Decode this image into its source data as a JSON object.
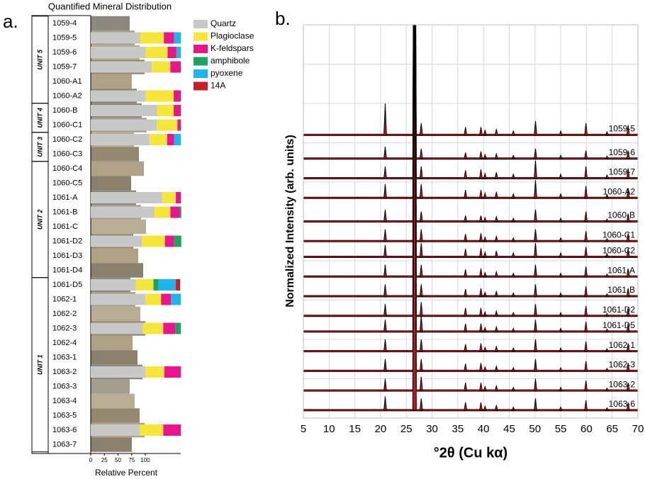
{
  "chart_data": [
    {
      "type": "stratigraphic-bar",
      "panel_label": "a.",
      "title": "Quantified Mineral Distribution",
      "x_label": "Relative Percent",
      "categories": [
        "1059-4",
        "1059-5",
        "1059-6",
        "1059-7",
        "1060-A1",
        "1060-A2",
        "1060-B",
        "1060-C1",
        "1060-C2",
        "1060-C3",
        "1060-C4",
        "1060-C5",
        "1061-A",
        "1061-B",
        "1061-C",
        "1061-D2",
        "1061-D3",
        "1061-D4",
        "1061-D5",
        "1062-1",
        "1062-2",
        "1062-3",
        "1062-4",
        "1063-1",
        "1063-2",
        "1063-3",
        "1063-4",
        "1063-5",
        "1063-6",
        "1063-7"
      ],
      "units": [
        {
          "label": "UNIT 5",
          "first_row": 0,
          "last_row": 5
        },
        {
          "label": "UNIT 4",
          "first_row": 6,
          "last_row": 7
        },
        {
          "label": "UNIT 3",
          "first_row": 8,
          "last_row": 9
        },
        {
          "label": "UNIT 2",
          "first_row": 10,
          "last_row": 17
        },
        {
          "label": "UNIT 1",
          "first_row": 18,
          "last_row": 29
        }
      ],
      "series": [
        {
          "name": "Quartz",
          "color": "#c8c8c8",
          "values": [
            null,
            91,
            101,
            112,
            null,
            101,
            122,
            121,
            108,
            null,
            null,
            null,
            131,
            117,
            null,
            94,
            null,
            null,
            83,
            100,
            null,
            95,
            null,
            null,
            100,
            null,
            null,
            null,
            90,
            null
          ]
        },
        {
          "name": "Plagioclase",
          "color": "#f5e63c",
          "values": [
            null,
            43,
            40,
            34,
            null,
            51,
            30,
            38,
            32,
            null,
            null,
            null,
            25,
            29,
            null,
            42,
            null,
            null,
            32,
            29,
            null,
            38,
            null,
            null,
            35,
            null,
            null,
            null,
            43,
            null
          ]
        },
        {
          "name": "K-feldspars",
          "color": "#e8168a",
          "values": [
            null,
            19,
            16,
            19,
            null,
            13,
            13,
            6,
            13,
            null,
            null,
            null,
            9,
            17,
            null,
            17,
            null,
            null,
            null,
            18,
            null,
            22,
            null,
            null,
            30,
            null,
            null,
            null,
            32,
            null
          ]
        },
        {
          "name": "amphibole",
          "color": "#1fa35c",
          "values": [
            null,
            null,
            null,
            null,
            null,
            null,
            null,
            null,
            null,
            null,
            null,
            null,
            null,
            3,
            null,
            13,
            null,
            null,
            9,
            null,
            null,
            10,
            null,
            null,
            null,
            null,
            null,
            null,
            null,
            null
          ]
        },
        {
          "name": "pyoxene",
          "color": "#1fb4ea",
          "values": [
            null,
            12,
            8,
            null,
            null,
            null,
            null,
            null,
            12,
            null,
            null,
            null,
            null,
            null,
            null,
            null,
            null,
            null,
            32,
            18,
            null,
            null,
            null,
            null,
            null,
            null,
            null,
            null,
            null,
            null
          ]
        },
        {
          "name": "14A",
          "color": "#c4202c",
          "values": [
            null,
            null,
            null,
            null,
            null,
            null,
            null,
            null,
            null,
            null,
            null,
            null,
            null,
            null,
            null,
            null,
            null,
            null,
            8,
            null,
            null,
            null,
            null,
            null,
            null,
            null,
            null,
            null,
            null,
            null
          ]
        }
      ],
      "xlim": [
        0,
        165
      ],
      "xticks": [
        0,
        25,
        50,
        75,
        100
      ]
    },
    {
      "type": "xrd",
      "panel_label": "b.",
      "x_label": "°2θ (Cu kα)",
      "y_label": "Normalized Intensity (arb. units)",
      "xlim": [
        5,
        70
      ],
      "xticks": [
        5,
        10,
        15,
        20,
        25,
        30,
        35,
        40,
        45,
        50,
        55,
        60,
        65,
        70
      ],
      "ylim": [
        0,
        10
      ],
      "ygrid": [
        0,
        1,
        2,
        3,
        4,
        5,
        6,
        7,
        8,
        9,
        10
      ],
      "grid": true,
      "line_color": "#000000",
      "fit_color": "#c8161e",
      "peak_positions": [
        20.9,
        26.6,
        27.9,
        36.5,
        39.5,
        40.3,
        42.5,
        45.8,
        50.1,
        55.0,
        59.9,
        64.0,
        68.1
      ],
      "series": [
        {
          "name": "1059-5",
          "baseline": 7.2,
          "values": [
            0.8,
            10,
            0.3,
            0.2,
            0.2,
            0.12,
            0.15,
            0.1,
            0.35,
            0.1,
            0.3,
            0.08,
            0.25
          ]
        },
        {
          "name": "1059-6",
          "baseline": 6.6,
          "values": [
            0.3,
            10,
            0.25,
            0.15,
            0.18,
            0.1,
            0.12,
            0.08,
            0.25,
            0.08,
            0.2,
            0.06,
            0.2
          ]
        },
        {
          "name": "1059-7",
          "baseline": 6.1,
          "values": [
            0.3,
            10,
            0.3,
            0.2,
            0.22,
            0.12,
            0.15,
            0.1,
            0.45,
            0.1,
            0.3,
            0.08,
            0.25
          ]
        },
        {
          "name": "1060-A2",
          "baseline": 5.6,
          "values": [
            0.35,
            10,
            0.35,
            0.2,
            0.2,
            0.12,
            0.15,
            0.1,
            0.45,
            0.1,
            0.3,
            0.08,
            0.25
          ]
        },
        {
          "name": "1060-B",
          "baseline": 5.0,
          "values": [
            0.3,
            10,
            0.25,
            0.15,
            0.15,
            0.1,
            0.12,
            0.08,
            0.3,
            0.08,
            0.25,
            0.06,
            0.2
          ]
        },
        {
          "name": "1060-C1",
          "baseline": 4.5,
          "values": [
            0.3,
            10,
            0.3,
            0.18,
            0.2,
            0.1,
            0.12,
            0.08,
            0.3,
            0.08,
            0.25,
            0.06,
            0.2
          ]
        },
        {
          "name": "1060-C2",
          "baseline": 4.1,
          "values": [
            0.3,
            10,
            0.35,
            0.2,
            0.22,
            0.12,
            0.15,
            0.1,
            0.35,
            0.1,
            0.25,
            0.08,
            0.22
          ]
        },
        {
          "name": "1061-A",
          "baseline": 3.6,
          "values": [
            0.3,
            10,
            0.3,
            0.18,
            0.2,
            0.1,
            0.12,
            0.08,
            0.3,
            0.08,
            0.25,
            0.06,
            0.2
          ]
        },
        {
          "name": "1061-B",
          "baseline": 3.1,
          "values": [
            0.3,
            10,
            0.3,
            0.18,
            0.2,
            0.1,
            0.12,
            0.08,
            0.3,
            0.08,
            0.25,
            0.06,
            0.2
          ]
        },
        {
          "name": "1061-D2",
          "baseline": 2.6,
          "values": [
            0.3,
            10,
            0.35,
            0.2,
            0.2,
            0.1,
            0.12,
            0.08,
            0.3,
            0.08,
            0.25,
            0.06,
            0.2
          ]
        },
        {
          "name": "1061-D5",
          "baseline": 2.2,
          "values": [
            0.3,
            10,
            0.4,
            0.2,
            0.2,
            0.1,
            0.12,
            0.08,
            0.3,
            0.08,
            0.25,
            0.06,
            0.2
          ]
        },
        {
          "name": "1062-1",
          "baseline": 1.7,
          "values": [
            0.3,
            10,
            0.3,
            0.18,
            0.2,
            0.1,
            0.12,
            0.08,
            0.3,
            0.08,
            0.25,
            0.06,
            0.2
          ]
        },
        {
          "name": "1062-3",
          "baseline": 1.2,
          "values": [
            0.3,
            10,
            0.3,
            0.18,
            0.2,
            0.1,
            0.12,
            0.08,
            0.3,
            0.08,
            0.25,
            0.06,
            0.2
          ]
        },
        {
          "name": "1063-2",
          "baseline": 0.7,
          "values": [
            0.3,
            10,
            0.35,
            0.2,
            0.2,
            0.1,
            0.12,
            0.08,
            0.3,
            0.08,
            0.25,
            0.06,
            0.2
          ]
        },
        {
          "name": "1063-6",
          "baseline": 0.2,
          "values": [
            0.35,
            10,
            0.3,
            0.2,
            0.2,
            0.1,
            0.12,
            0.08,
            0.3,
            0.08,
            0.25,
            0.06,
            0.2
          ]
        }
      ]
    }
  ]
}
